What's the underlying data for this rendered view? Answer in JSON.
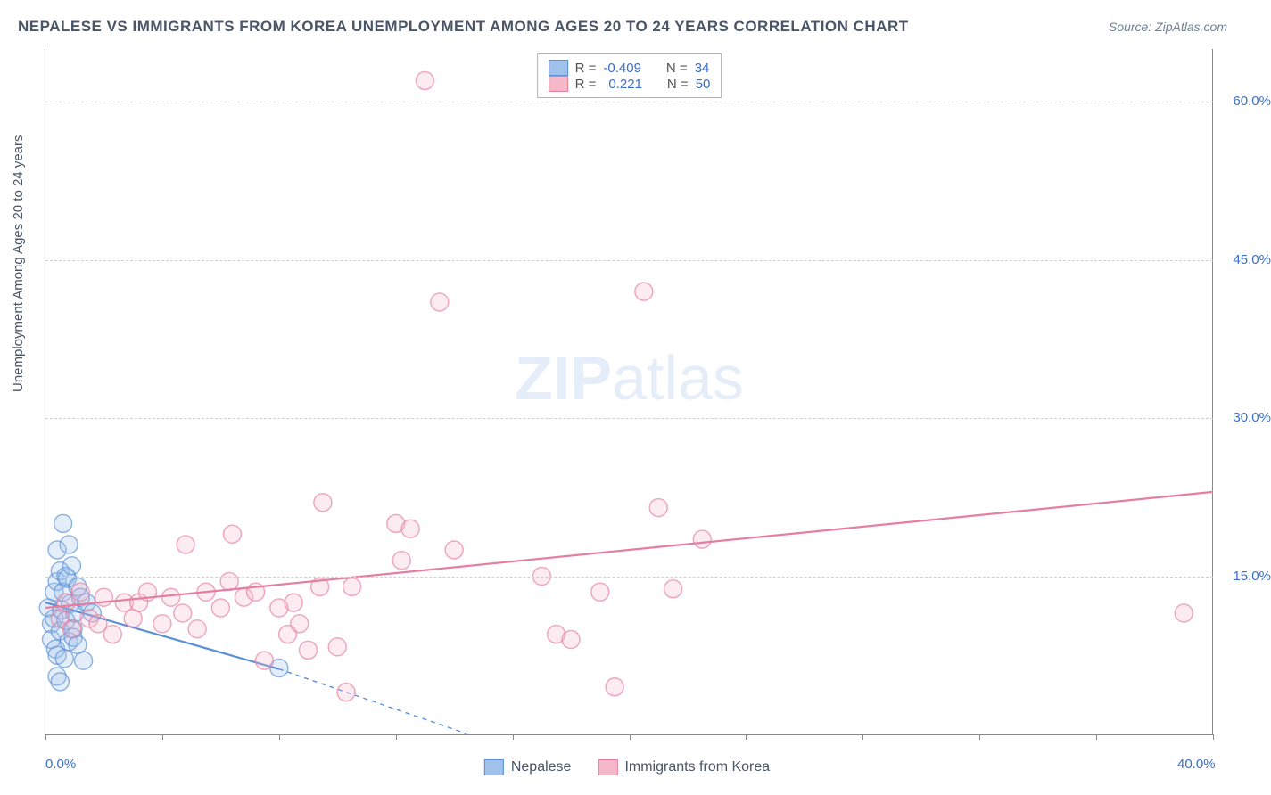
{
  "title": "NEPALESE VS IMMIGRANTS FROM KOREA UNEMPLOYMENT AMONG AGES 20 TO 24 YEARS CORRELATION CHART",
  "source": "Source: ZipAtlas.com",
  "y_axis_label": "Unemployment Among Ages 20 to 24 years",
  "watermark_a": "ZIP",
  "watermark_b": "atlas",
  "chart": {
    "type": "scatter",
    "xlim": [
      0,
      40
    ],
    "ylim": [
      0,
      65
    ],
    "x_ticks": [
      0,
      4,
      8,
      12,
      16,
      20,
      24,
      28,
      32,
      36,
      40
    ],
    "x_tick_labels": {
      "0": "0.0%",
      "40": "40.0%"
    },
    "y_ticks": [
      15,
      30,
      45,
      60
    ],
    "y_tick_labels": {
      "15": "15.0%",
      "30": "30.0%",
      "45": "45.0%",
      "60": "60.0%"
    },
    "background_color": "#ffffff",
    "grid_color": "#d0d0d0",
    "marker_radius": 10,
    "marker_fill_opacity": 0.28,
    "marker_stroke_width": 1.5,
    "line_width": 2.2,
    "series": [
      {
        "name": "Nepalese",
        "color_stroke": "#5b8fd6",
        "color_fill": "#9fc1ea",
        "R": "-0.409",
        "N": "34",
        "trend": {
          "x1": 0,
          "y1": 12.5,
          "x2": 8,
          "y2": 6.2,
          "dash_ext_x2": 14.5,
          "dash_ext_y2": 0
        },
        "points": [
          [
            0.1,
            12.0
          ],
          [
            0.2,
            10.5
          ],
          [
            0.2,
            9.0
          ],
          [
            0.3,
            13.5
          ],
          [
            0.3,
            11.0
          ],
          [
            0.35,
            8.1
          ],
          [
            0.4,
            14.5
          ],
          [
            0.4,
            17.5
          ],
          [
            0.4,
            7.5
          ],
          [
            0.5,
            15.5
          ],
          [
            0.5,
            9.8
          ],
          [
            0.55,
            11.8
          ],
          [
            0.6,
            20.0
          ],
          [
            0.6,
            13.5
          ],
          [
            0.65,
            7.2
          ],
          [
            0.7,
            15.0
          ],
          [
            0.7,
            10.8
          ],
          [
            0.75,
            14.8
          ],
          [
            0.8,
            18.0
          ],
          [
            0.8,
            8.8
          ],
          [
            0.85,
            12.4
          ],
          [
            0.9,
            16.0
          ],
          [
            0.95,
            10.0
          ],
          [
            0.95,
            9.2
          ],
          [
            1.0,
            11.5
          ],
          [
            1.1,
            14.0
          ],
          [
            1.1,
            8.5
          ],
          [
            1.2,
            13.0
          ],
          [
            1.3,
            7.0
          ],
          [
            0.4,
            5.5
          ],
          [
            1.4,
            12.5
          ],
          [
            0.5,
            5.0
          ],
          [
            1.6,
            11.5
          ],
          [
            8.0,
            6.3
          ]
        ]
      },
      {
        "name": "Immigrants from Korea",
        "color_stroke": "#e57f9f",
        "color_fill": "#f5b8c9",
        "R": "0.221",
        "N": "50",
        "trend": {
          "x1": 0,
          "y1": 12.0,
          "x2": 40,
          "y2": 23.0
        },
        "points": [
          [
            0.5,
            11.0
          ],
          [
            0.7,
            12.5
          ],
          [
            0.9,
            10.0
          ],
          [
            1.2,
            13.5
          ],
          [
            1.5,
            11.0
          ],
          [
            1.8,
            10.5
          ],
          [
            2.0,
            13.0
          ],
          [
            2.3,
            9.5
          ],
          [
            2.7,
            12.5
          ],
          [
            3.0,
            11.0
          ],
          [
            3.2,
            12.5
          ],
          [
            3.5,
            13.5
          ],
          [
            4.0,
            10.5
          ],
          [
            4.3,
            13.0
          ],
          [
            4.7,
            11.5
          ],
          [
            4.8,
            18.0
          ],
          [
            5.2,
            10.0
          ],
          [
            5.5,
            13.5
          ],
          [
            6.0,
            12.0
          ],
          [
            6.3,
            14.5
          ],
          [
            6.4,
            19.0
          ],
          [
            6.8,
            13.0
          ],
          [
            7.2,
            13.5
          ],
          [
            7.5,
            7.0
          ],
          [
            8.0,
            12.0
          ],
          [
            8.3,
            9.5
          ],
          [
            8.5,
            12.5
          ],
          [
            8.7,
            10.5
          ],
          [
            9.0,
            8.0
          ],
          [
            9.4,
            14.0
          ],
          [
            9.5,
            22.0
          ],
          [
            10.0,
            8.3
          ],
          [
            10.3,
            4.0
          ],
          [
            10.5,
            14.0
          ],
          [
            12.0,
            20.0
          ],
          [
            12.2,
            16.5
          ],
          [
            12.5,
            19.5
          ],
          [
            13.0,
            62.0
          ],
          [
            13.5,
            41.0
          ],
          [
            14.0,
            17.5
          ],
          [
            17.0,
            15.0
          ],
          [
            17.5,
            9.5
          ],
          [
            18.0,
            9.0
          ],
          [
            19.0,
            13.5
          ],
          [
            19.5,
            4.5
          ],
          [
            20.5,
            42.0
          ],
          [
            21.0,
            21.5
          ],
          [
            21.5,
            13.8
          ],
          [
            22.5,
            18.5
          ],
          [
            39.0,
            11.5
          ]
        ]
      }
    ]
  },
  "legend_top": {
    "r_label": "R =",
    "n_label": "N ="
  },
  "legend_bottom": {
    "items": [
      "Nepalese",
      "Immigrants from Korea"
    ]
  }
}
